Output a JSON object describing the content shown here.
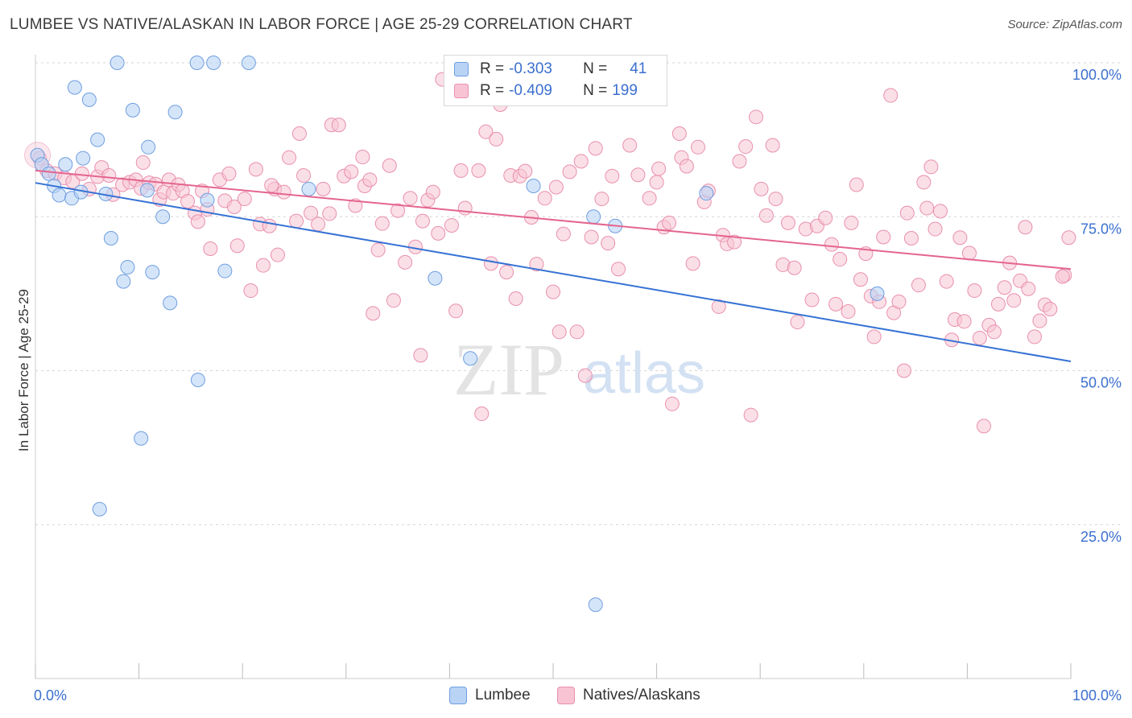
{
  "title": "LUMBEE VS NATIVE/ALASKAN IN LABOR FORCE | AGE 25-29 CORRELATION CHART",
  "source": "Source: ZipAtlas.com",
  "watermark": {
    "zip": "ZIP",
    "atlas": "atlas"
  },
  "colors": {
    "lumbee_fill": "#b9d3f5",
    "lumbee_stroke": "#6f9ee0",
    "lumbee_line": "#3672d4",
    "native_fill": "#f8c4d4",
    "native_stroke": "#e890ae",
    "native_line": "#e4658f",
    "tick_label": "#3b6fcf",
    "grid": "#d6d6d6"
  },
  "legend": {
    "row1": {
      "r_label": "R =",
      "r_value": "-0.303",
      "n_label": "N =",
      "n_value": "41"
    },
    "row2": {
      "r_label": "R =",
      "r_value": "-0.409",
      "n_label": "N =",
      "n_value": "199"
    }
  },
  "chart_data": {
    "type": "scatter",
    "xlabel": "",
    "ylabel": "In Labor Force | Age 25-29",
    "xlim": [
      0,
      100
    ],
    "ylim": [
      0,
      103
    ],
    "x_tick_labels": [
      "0.0%",
      "100.0%"
    ],
    "y_tick_labels": [
      "25.0%",
      "50.0%",
      "75.0%",
      "100.0%"
    ],
    "y_ticks": [
      25,
      50,
      75,
      100
    ],
    "grid": "horizontal dashed",
    "legend_position": "top-center",
    "series": [
      {
        "name": "Lumbee",
        "trend": {
          "x": [
            0,
            100
          ],
          "y": [
            80.5,
            51.5
          ]
        },
        "points": [
          [
            0.2,
            85
          ],
          [
            0.6,
            83.5
          ],
          [
            1.3,
            82
          ],
          [
            1.8,
            80
          ],
          [
            2.3,
            78.5
          ],
          [
            2.9,
            83.5
          ],
          [
            3.5,
            78
          ],
          [
            4.4,
            79
          ],
          [
            4.6,
            84.5
          ],
          [
            3.8,
            96
          ],
          [
            5.2,
            94
          ],
          [
            6.0,
            87.5
          ],
          [
            6.8,
            78.7
          ],
          [
            7.3,
            71.5
          ],
          [
            7.9,
            100
          ],
          [
            8.5,
            64.5
          ],
          [
            8.9,
            66.8
          ],
          [
            9.4,
            92.3
          ],
          [
            10.2,
            39
          ],
          [
            10.8,
            79.3
          ],
          [
            10.9,
            86.3
          ],
          [
            11.3,
            66
          ],
          [
            12.3,
            75
          ],
          [
            13.0,
            61
          ],
          [
            13.5,
            92
          ],
          [
            15.7,
            48.5
          ],
          [
            15.6,
            100
          ],
          [
            16.6,
            77.7
          ],
          [
            17.2,
            100
          ],
          [
            18.3,
            66.2
          ],
          [
            6.2,
            27.5
          ],
          [
            20.6,
            100
          ],
          [
            26.4,
            79.5
          ],
          [
            38.6,
            65
          ],
          [
            42.0,
            52
          ],
          [
            48.1,
            80
          ],
          [
            53.9,
            75
          ],
          [
            54.1,
            12
          ],
          [
            56.0,
            73.5
          ],
          [
            64.8,
            78.8
          ],
          [
            81.3,
            62.5
          ]
        ]
      },
      {
        "name": "Natives/Alaskans",
        "trend": {
          "x": [
            0,
            100
          ],
          "y": [
            82.5,
            66.5
          ]
        },
        "points": [
          [
            0.4,
            84.5
          ],
          [
            1.1,
            82.5
          ],
          [
            1.9,
            82
          ],
          [
            2.8,
            81.3
          ],
          [
            3.6,
            80.7
          ],
          [
            4.5,
            82
          ],
          [
            5.2,
            79.5
          ],
          [
            6.0,
            81.5
          ],
          [
            6.4,
            83
          ],
          [
            7.1,
            81.7
          ],
          [
            7.5,
            78.6
          ],
          [
            8.4,
            80.2
          ],
          [
            9.1,
            80.6
          ],
          [
            9.7,
            81
          ],
          [
            10.2,
            79.6
          ],
          [
            10.4,
            83.8
          ],
          [
            11.0,
            80.5
          ],
          [
            11.6,
            80.3
          ],
          [
            12.0,
            77.8
          ],
          [
            12.4,
            79
          ],
          [
            12.9,
            81
          ],
          [
            13.3,
            78.8
          ],
          [
            13.8,
            80.2
          ],
          [
            14.2,
            79.2
          ],
          [
            14.7,
            77.5
          ],
          [
            15.4,
            75.6
          ],
          [
            15.7,
            74.2
          ],
          [
            16.1,
            79.2
          ],
          [
            16.6,
            76.2
          ],
          [
            16.9,
            69.8
          ],
          [
            17.8,
            81
          ],
          [
            18.3,
            77.6
          ],
          [
            18.7,
            82
          ],
          [
            19.2,
            76.6
          ],
          [
            19.5,
            70.3
          ],
          [
            20.2,
            77.9
          ],
          [
            20.8,
            63
          ],
          [
            21.3,
            82.7
          ],
          [
            21.7,
            73.8
          ],
          [
            22.0,
            67.1
          ],
          [
            22.6,
            73.5
          ],
          [
            23.1,
            79.5
          ],
          [
            23.4,
            68.8
          ],
          [
            24.0,
            79
          ],
          [
            24.5,
            84.6
          ],
          [
            25.2,
            74.3
          ],
          [
            25.5,
            88.5
          ],
          [
            25.9,
            81.7
          ],
          [
            26.6,
            75.6
          ],
          [
            27.3,
            73.8
          ],
          [
            27.8,
            79.5
          ],
          [
            28.4,
            75.5
          ],
          [
            28.6,
            89.9
          ],
          [
            29.3,
            89.9
          ],
          [
            29.8,
            81.6
          ],
          [
            30.5,
            82.3
          ],
          [
            30.9,
            76.8
          ],
          [
            31.6,
            84.7
          ],
          [
            31.8,
            80
          ],
          [
            32.3,
            81
          ],
          [
            32.6,
            59.3
          ],
          [
            33.1,
            69.6
          ],
          [
            33.5,
            73.9
          ],
          [
            34.2,
            83.3
          ],
          [
            34.6,
            61.4
          ],
          [
            35.0,
            76
          ],
          [
            35.7,
            67.6
          ],
          [
            36.2,
            78
          ],
          [
            36.7,
            70.1
          ],
          [
            37.2,
            52.5
          ],
          [
            37.4,
            74.3
          ],
          [
            37.9,
            77.7
          ],
          [
            38.4,
            79
          ],
          [
            38.9,
            72.3
          ],
          [
            39.3,
            97.3
          ],
          [
            40.2,
            73.6
          ],
          [
            40.6,
            59.7
          ],
          [
            41.1,
            82.5
          ],
          [
            41.5,
            76.4
          ],
          [
            42.3,
            100
          ],
          [
            42.8,
            82.5
          ],
          [
            43.1,
            43
          ],
          [
            43.5,
            88.8
          ],
          [
            44.0,
            67.4
          ],
          [
            44.5,
            87.6
          ],
          [
            44.9,
            93.2
          ],
          [
            45.5,
            66
          ],
          [
            45.9,
            81.7
          ],
          [
            46.4,
            61.7
          ],
          [
            46.8,
            81.6
          ],
          [
            47.3,
            82.4
          ],
          [
            47.9,
            74.9
          ],
          [
            48.4,
            67.3
          ],
          [
            49.2,
            78
          ],
          [
            50.0,
            62.8
          ],
          [
            50.6,
            56.3
          ],
          [
            51.0,
            72.2
          ],
          [
            51.6,
            82.3
          ],
          [
            52.3,
            56.3
          ],
          [
            52.7,
            84
          ],
          [
            53.1,
            49.2
          ],
          [
            53.7,
            71.7
          ],
          [
            54.1,
            86.1
          ],
          [
            54.7,
            77.9
          ],
          [
            55.3,
            70.7
          ],
          [
            55.7,
            81.6
          ],
          [
            56.3,
            66.5
          ],
          [
            57.0,
            100
          ],
          [
            57.4,
            86.6
          ],
          [
            58.2,
            81.8
          ],
          [
            58.6,
            100
          ],
          [
            59.3,
            78
          ],
          [
            60.0,
            80.6
          ],
          [
            60.2,
            82.8
          ],
          [
            60.7,
            73.3
          ],
          [
            61.2,
            74
          ],
          [
            61.5,
            44.6
          ],
          [
            62.2,
            88.5
          ],
          [
            62.4,
            84.6
          ],
          [
            62.9,
            83.2
          ],
          [
            63.5,
            67.4
          ],
          [
            64.0,
            86.3
          ],
          [
            64.6,
            77.4
          ],
          [
            65.0,
            79.2
          ],
          [
            66.0,
            60.4
          ],
          [
            66.4,
            72
          ],
          [
            66.8,
            70.6
          ],
          [
            67.5,
            70.9
          ],
          [
            68.0,
            84
          ],
          [
            68.6,
            86.4
          ],
          [
            69.1,
            42.8
          ],
          [
            69.6,
            91.2
          ],
          [
            70.1,
            79.5
          ],
          [
            70.6,
            75.2
          ],
          [
            71.2,
            86.6
          ],
          [
            71.5,
            77.9
          ],
          [
            72.2,
            67.2
          ],
          [
            72.7,
            74
          ],
          [
            73.3,
            66.7
          ],
          [
            73.6,
            57.9
          ],
          [
            74.4,
            73
          ],
          [
            75.0,
            61.5
          ],
          [
            75.5,
            73.5
          ],
          [
            76.3,
            74.8
          ],
          [
            76.9,
            70.5
          ],
          [
            77.3,
            60.8
          ],
          [
            77.7,
            68.1
          ],
          [
            78.5,
            59.6
          ],
          [
            78.8,
            74
          ],
          [
            79.3,
            80.2
          ],
          [
            79.7,
            64.8
          ],
          [
            80.2,
            69
          ],
          [
            80.7,
            62.1
          ],
          [
            81.0,
            55.5
          ],
          [
            81.5,
            61.2
          ],
          [
            81.9,
            71.7
          ],
          [
            82.6,
            94.7
          ],
          [
            82.9,
            59.4
          ],
          [
            83.4,
            61.2
          ],
          [
            83.9,
            50
          ],
          [
            84.2,
            75.6
          ],
          [
            84.6,
            71.5
          ],
          [
            85.3,
            63.9
          ],
          [
            85.8,
            80.6
          ],
          [
            86.1,
            76.4
          ],
          [
            86.9,
            73
          ],
          [
            86.5,
            83.1
          ],
          [
            87.4,
            75.9
          ],
          [
            88.0,
            64.5
          ],
          [
            88.5,
            55
          ],
          [
            88.8,
            58.3
          ],
          [
            89.3,
            71.6
          ],
          [
            89.7,
            58
          ],
          [
            90.2,
            69.1
          ],
          [
            90.7,
            63
          ],
          [
            91.2,
            55.3
          ],
          [
            91.6,
            41
          ],
          [
            92.1,
            57.4
          ],
          [
            92.6,
            56.3
          ],
          [
            93.0,
            60.8
          ],
          [
            93.6,
            63.5
          ],
          [
            94.1,
            67.5
          ],
          [
            94.5,
            61.4
          ],
          [
            95.1,
            64.6
          ],
          [
            95.6,
            73.3
          ],
          [
            95.9,
            63.3
          ],
          [
            96.5,
            55.5
          ],
          [
            97.0,
            58.1
          ],
          [
            97.5,
            60.7
          ],
          [
            98.0,
            60
          ],
          [
            99.4,
            65.5
          ],
          [
            99.8,
            71.6
          ],
          [
            99.2,
            65.3
          ],
          [
            22.8,
            80.1
          ],
          [
            50.3,
            79.8
          ]
        ]
      }
    ]
  },
  "bottom_legend": [
    "Lumbee",
    "Natives/Alaskans"
  ]
}
